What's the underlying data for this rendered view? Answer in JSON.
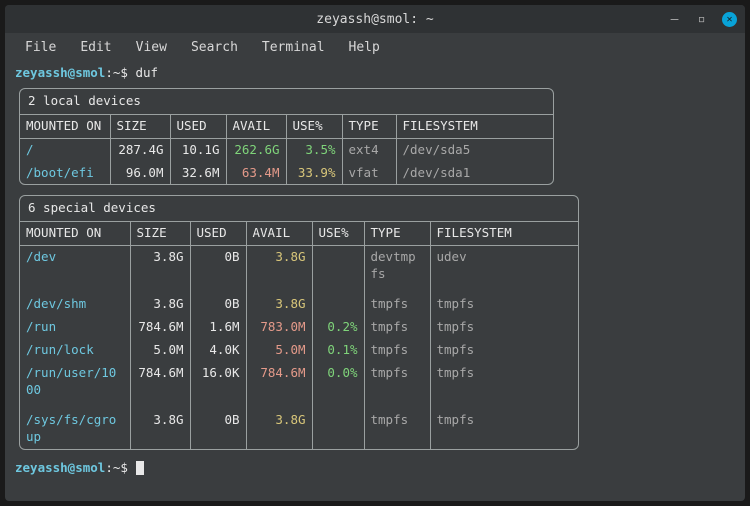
{
  "window": {
    "title": "zeyassh@smol: ~"
  },
  "menu": {
    "items": [
      "File",
      "Edit",
      "View",
      "Search",
      "Terminal",
      "Help"
    ]
  },
  "prompt": {
    "user_host": "zeyassh@smol",
    "path": "~",
    "symbol": "$",
    "command": "duf"
  },
  "boxes": [
    {
      "title": "2 local devices",
      "wide": false,
      "headers": [
        "MOUNTED ON",
        "SIZE",
        "USED",
        "AVAIL",
        "USE%",
        "TYPE",
        "FILESYSTEM"
      ],
      "col_widths": [
        "90px",
        "60px",
        "56px",
        "60px",
        "56px",
        "54px",
        "auto"
      ],
      "rows": [
        {
          "mount": "/",
          "size": "287.4G",
          "used": "10.1G",
          "avail": "262.6G",
          "avail_color": "green",
          "usep": "3.5%",
          "usep_color": "green",
          "type": "ext4",
          "fs": "/dev/sda5"
        },
        {
          "mount": "/boot/efi",
          "size": "96.0M",
          "used": "32.6M",
          "avail": "63.4M",
          "avail_color": "red",
          "usep": "33.9%",
          "usep_color": "yellow",
          "type": "vfat",
          "fs": "/dev/sda1"
        }
      ]
    },
    {
      "title": "6 special devices",
      "wide": true,
      "headers": [
        "MOUNTED ON",
        "SIZE",
        "USED",
        "AVAIL",
        "USE%",
        "TYPE",
        "FILESYSTEM"
      ],
      "col_widths": [
        "110px",
        "60px",
        "56px",
        "66px",
        "52px",
        "66px",
        "auto"
      ],
      "rows": [
        {
          "mount": "/dev",
          "size": "3.8G",
          "used": "0B",
          "avail": "3.8G",
          "avail_color": "yellow",
          "usep": "",
          "usep_color": "",
          "type": "devtmp\nfs",
          "fs": "udev"
        },
        {
          "spacer": true
        },
        {
          "mount": "/dev/shm",
          "size": "3.8G",
          "used": "0B",
          "avail": "3.8G",
          "avail_color": "yellow",
          "usep": "",
          "usep_color": "",
          "type": "tmpfs",
          "fs": "tmpfs"
        },
        {
          "mount": "/run",
          "size": "784.6M",
          "used": "1.6M",
          "avail": "783.0M",
          "avail_color": "red",
          "usep": "0.2%",
          "usep_color": "green",
          "type": "tmpfs",
          "fs": "tmpfs"
        },
        {
          "mount": "/run/lock",
          "size": "5.0M",
          "used": "4.0K",
          "avail": "5.0M",
          "avail_color": "red",
          "usep": "0.1%",
          "usep_color": "green",
          "type": "tmpfs",
          "fs": "tmpfs"
        },
        {
          "mount": "/run/user/10\n00",
          "size": "784.6M",
          "used": "16.0K",
          "avail": "784.6M",
          "avail_color": "red",
          "usep": "0.0%",
          "usep_color": "green",
          "type": "tmpfs",
          "fs": "tmpfs"
        },
        {
          "spacer": true
        },
        {
          "mount": "/sys/fs/cgro\nup",
          "size": "3.8G",
          "used": "0B",
          "avail": "3.8G",
          "avail_color": "yellow",
          "usep": "",
          "usep_color": "",
          "type": "tmpfs",
          "fs": "tmpfs"
        }
      ]
    }
  ],
  "colors": {
    "window_bg": "#3a3d3f",
    "titlebar_bg": "#2f3234",
    "text": "#e8e8e8",
    "border": "#9aa0a0",
    "mount": "#6ec8e0",
    "green": "#7fd47a",
    "red": "#e49a8a",
    "yellow": "#d8c67a",
    "dim": "#a8a8a8",
    "close_btn": "#08a3d8"
  }
}
